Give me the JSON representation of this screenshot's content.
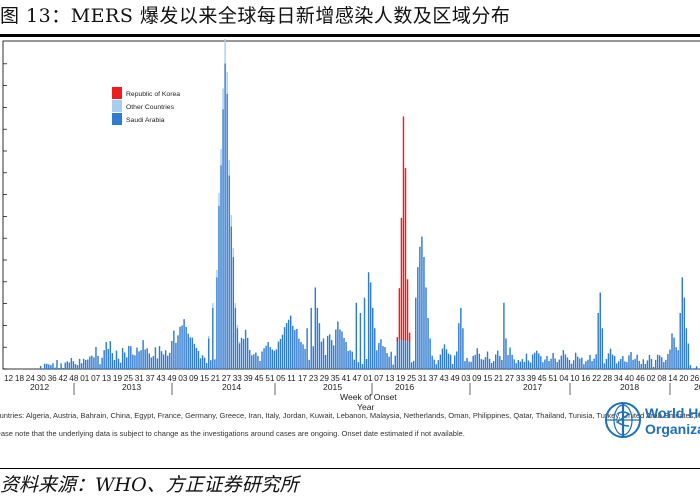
{
  "title": "图 13：MERS 爆发以来全球每日新增感染人数及区域分布",
  "source": "资料来源：WHO、方正证券研究所",
  "colors": {
    "korea": "#ee1c1c",
    "other": "#a7ceef",
    "saudi": "#2f7bd2"
  },
  "chart_data": {
    "type": "bar",
    "stacked": true,
    "xlabel": "Week of Onset",
    "xlabel2": "Year",
    "ylabel": "",
    "legend": [
      "Republic of Korea",
      "Other Countries",
      "Saudi Arabia"
    ],
    "legend_position": "top-left",
    "years": [
      "2012",
      "2013",
      "2014",
      "2015",
      "2016",
      "2017",
      "2018",
      "20"
    ],
    "week_ticks": [
      "12",
      "18",
      "24",
      "30",
      "36",
      "42",
      "48",
      "01",
      "07",
      "13",
      "19",
      "25",
      "31",
      "37",
      "43",
      "49",
      "03",
      "09",
      "15",
      "21",
      "27",
      "33",
      "39",
      "45",
      "51",
      "05",
      "11",
      "17",
      "23",
      "29",
      "35",
      "41",
      "47",
      "01",
      "07",
      "13",
      "19",
      "25",
      "31",
      "37",
      "43",
      "49",
      "03",
      "09",
      "15",
      "21",
      "27",
      "33",
      "39",
      "45",
      "51",
      "04",
      "10",
      "16",
      "22",
      "28",
      "34",
      "40",
      "46",
      "02",
      "08",
      "14",
      "20",
      "26"
    ],
    "approx_weekly_peaks": [
      {
        "period": "2014 wk 15-17",
        "series": "Saudi Arabia",
        "value": "highest peak"
      },
      {
        "period": "2015 wk 23",
        "series": "Republic of Korea",
        "value": "second peak"
      },
      {
        "period": "2015 wk 33-37",
        "series": "Saudi Arabia",
        "value": "secondary peak"
      }
    ],
    "series": [
      {
        "name": "Saudi Arabia",
        "values": [
          0,
          0,
          0,
          0,
          0,
          0,
          0,
          0,
          0,
          0,
          0,
          0,
          0,
          0,
          1,
          0,
          0,
          0,
          1,
          0,
          0,
          0,
          1,
          0,
          0,
          0,
          1,
          0,
          0,
          0,
          1,
          1,
          1,
          2,
          1,
          1,
          0,
          1,
          1,
          2,
          1,
          1,
          2,
          3,
          2,
          4,
          2,
          1,
          2,
          3,
          5,
          4,
          6,
          3,
          2,
          3,
          2,
          1,
          4,
          3,
          2,
          5,
          4,
          2,
          3,
          4,
          4,
          3,
          6,
          4,
          4,
          3,
          2,
          3,
          4,
          2,
          5,
          3,
          2,
          4,
          3,
          3,
          6,
          8,
          5,
          7,
          9,
          10,
          11,
          9,
          8,
          7,
          6,
          5,
          4,
          3,
          2,
          2,
          2,
          1,
          1,
          2,
          2,
          1,
          1,
          1,
          2,
          1,
          2,
          3,
          1,
          2,
          3,
          4,
          5,
          5,
          6,
          7,
          8,
          6,
          4,
          3,
          2,
          3,
          2,
          1,
          3,
          4,
          5,
          6,
          5,
          4,
          3,
          4,
          6,
          7,
          8,
          9,
          10,
          11,
          12,
          10,
          9,
          8,
          7,
          6,
          5,
          4,
          3,
          2,
          3,
          4,
          3,
          5,
          6,
          5,
          4,
          3,
          7,
          8,
          6,
          5,
          9,
          10,
          9,
          8,
          6,
          5,
          4,
          3,
          3,
          2,
          2,
          1,
          1,
          1,
          1,
          1,
          1,
          1,
          2,
          3,
          4,
          5,
          6,
          5,
          4,
          3,
          2,
          3,
          1,
          2,
          1,
          2,
          3,
          2,
          1,
          2,
          1,
          1,
          1,
          2,
          1,
          0,
          1,
          2,
          1,
          1,
          2,
          3,
          2,
          1,
          2,
          3,
          4,
          5,
          4,
          3,
          2,
          1,
          2,
          3,
          4,
          3,
          2,
          1,
          2,
          1,
          1,
          2,
          3,
          4,
          3,
          2,
          1,
          2,
          3,
          2,
          1,
          1,
          2,
          3,
          2,
          2,
          1,
          2,
          3,
          4,
          3,
          2,
          1,
          2,
          1,
          2,
          1,
          3,
          2,
          1,
          2,
          3,
          4,
          3,
          2,
          1,
          2,
          2,
          1,
          2,
          3,
          2,
          1,
          2,
          3,
          4,
          3,
          2,
          1,
          1,
          2,
          3,
          2,
          1,
          2,
          1,
          1,
          1,
          2,
          1,
          2,
          3,
          2,
          1,
          2,
          1,
          2,
          3,
          4,
          3,
          2,
          1,
          1,
          1,
          2,
          1,
          1,
          2,
          3,
          2,
          1,
          2,
          1,
          1,
          2,
          1,
          1,
          2,
          1,
          0,
          1,
          2,
          3,
          2,
          1,
          2,
          3,
          4,
          8,
          6,
          4,
          3,
          2
        ]
      },
      {
        "name": "Other Countries",
        "values": []
      },
      {
        "name": "Republic of Korea",
        "values": []
      }
    ]
  },
  "notes": {
    "countries": "Countries: Algeria, Austria, Bahrain, China, Egypt, France, Germany, Greece, Iran, Italy, Jordan, Kuwait, Lebanon, Malaysia, Netherlands, Oman, Philippines, Qatar, Thailand, Tunisia, Turkey, United Arab Emirates, United Kingdom, United States of America, Yemen",
    "disclaimer": "Please note that the underlying data is subject to change as the investigations around cases are ongoing. Onset date estimated if not available."
  },
  "logo": {
    "line1": "World Health",
    "line2": "Organization"
  }
}
